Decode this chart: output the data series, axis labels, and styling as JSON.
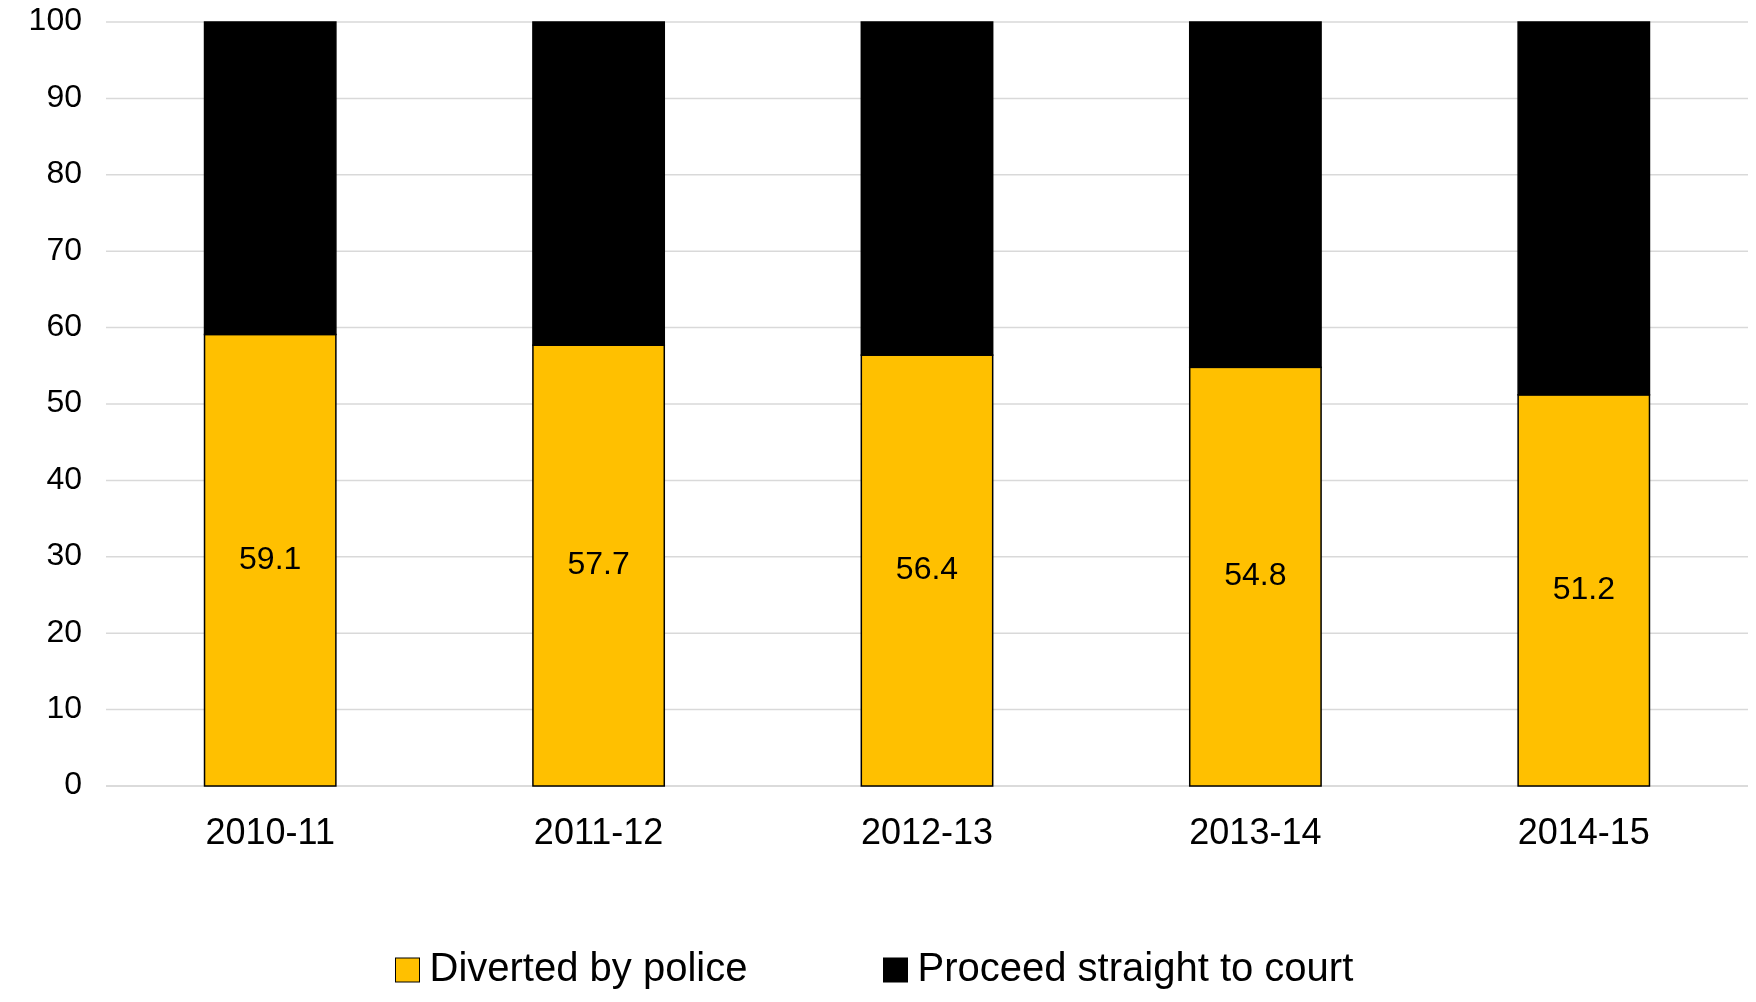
{
  "chart_data": {
    "type": "bar",
    "stacked": true,
    "categories": [
      "2010-11",
      "2011-12",
      "2012-13",
      "2013-14",
      "2014-15"
    ],
    "series": [
      {
        "name": "Diverted by police",
        "color": "#ffc000",
        "values": [
          59.1,
          57.7,
          56.4,
          54.8,
          51.2
        ],
        "value_labels": [
          "59.1",
          "57.7",
          "56.4",
          "54.8",
          "51.2"
        ]
      },
      {
        "name": "Proceed straight to court",
        "color": "#000000",
        "values": [
          40.9,
          42.3,
          43.6,
          45.2,
          48.8
        ]
      }
    ],
    "ylim": [
      0,
      100
    ],
    "yticks": [
      0,
      10,
      20,
      30,
      40,
      50,
      60,
      70,
      80,
      90,
      100
    ],
    "grid": "y",
    "legend": "bottom"
  }
}
